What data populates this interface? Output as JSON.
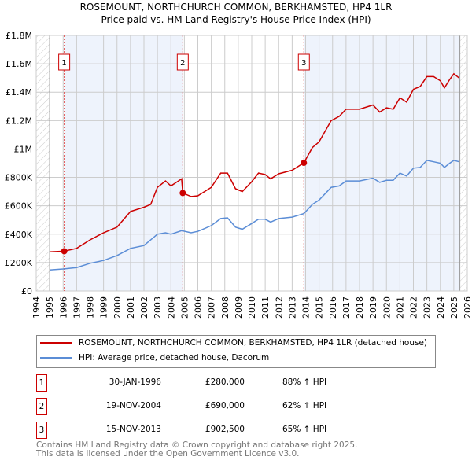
{
  "chart_data": {
    "type": "line",
    "title": "ROSEMOUNT, NORTHCHURCH COMMON, BERKHAMSTED, HP4 1LR",
    "subtitle": "Price paid vs. HM Land Registry's House Price Index (HPI)",
    "xlim": [
      1994,
      2026
    ],
    "ylim": [
      0,
      1800000
    ],
    "x_ticks": [
      "1994",
      "1995",
      "1996",
      "1997",
      "1998",
      "1999",
      "2000",
      "2001",
      "2002",
      "2003",
      "2004",
      "2005",
      "2006",
      "2007",
      "2008",
      "2009",
      "2010",
      "2011",
      "2012",
      "2013",
      "2014",
      "2015",
      "2016",
      "2017",
      "2018",
      "2019",
      "2020",
      "2021",
      "2022",
      "2023",
      "2024",
      "2025",
      "2026"
    ],
    "y_ticks": [
      {
        "v": 0,
        "label": "£0"
      },
      {
        "v": 200000,
        "label": "£200K"
      },
      {
        "v": 400000,
        "label": "£400K"
      },
      {
        "v": 600000,
        "label": "£600K"
      },
      {
        "v": 800000,
        "label": "£800K"
      },
      {
        "v": 1000000,
        "label": "£1M"
      },
      {
        "v": 1200000,
        "label": "£1.2M"
      },
      {
        "v": 1400000,
        "label": "£1.4M"
      },
      {
        "v": 1600000,
        "label": "£1.6M"
      },
      {
        "v": 1800000,
        "label": "£1.8M"
      }
    ],
    "grid": true,
    "series": [
      {
        "name": "ROSEMOUNT, NORTHCHURCH COMMON, BERKHAMSTED, HP4 1LR (detached house)",
        "color": "#cc0000",
        "x": [
          1995,
          1996.08,
          1997,
          1998,
          1999,
          2000,
          2001,
          2002,
          2002.5,
          2003,
          2003.6,
          2004,
          2004.8,
          2004.88,
          2005.5,
          2006,
          2007,
          2007.7,
          2008.2,
          2008.8,
          2009.3,
          2010,
          2010.5,
          2011,
          2011.4,
          2012,
          2013,
          2013.87,
          2014.5,
          2015,
          2015.9,
          2016.5,
          2017,
          2018,
          2019,
          2019.5,
          2020,
          2020.5,
          2021,
          2021.5,
          2022,
          2022.5,
          2023,
          2023.5,
          2024,
          2024.3,
          2024.7,
          2025,
          2025.4
        ],
        "y": [
          275000,
          280000,
          300000,
          360000,
          410000,
          450000,
          560000,
          590000,
          610000,
          730000,
          775000,
          740000,
          790000,
          690000,
          665000,
          670000,
          730000,
          830000,
          830000,
          720000,
          700000,
          770000,
          830000,
          820000,
          790000,
          825000,
          850000,
          902500,
          1010000,
          1050000,
          1200000,
          1230000,
          1280000,
          1280000,
          1310000,
          1260000,
          1290000,
          1280000,
          1360000,
          1330000,
          1420000,
          1440000,
          1510000,
          1510000,
          1480000,
          1430000,
          1490000,
          1530000,
          1500000
        ]
      },
      {
        "name": "HPI: Average price, detached house, Dacorum",
        "color": "#5b8dd6",
        "x": [
          1995,
          1996,
          1997,
          1998,
          1999,
          2000,
          2001,
          2002,
          2003,
          2003.6,
          2004,
          2004.8,
          2005.5,
          2006,
          2007,
          2007.7,
          2008.2,
          2008.8,
          2009.3,
          2010,
          2010.5,
          2011,
          2011.4,
          2012,
          2013,
          2013.87,
          2014.5,
          2015,
          2015.9,
          2016.5,
          2017,
          2018,
          2019,
          2019.5,
          2020,
          2020.5,
          2021,
          2021.5,
          2022,
          2022.5,
          2023,
          2023.5,
          2024,
          2024.3,
          2024.7,
          2025,
          2025.4
        ],
        "y": [
          148000,
          155000,
          165000,
          195000,
          215000,
          250000,
          300000,
          320000,
          400000,
          410000,
          400000,
          425000,
          410000,
          420000,
          460000,
          510000,
          515000,
          450000,
          435000,
          475000,
          505000,
          505000,
          485000,
          510000,
          520000,
          545000,
          610000,
          640000,
          730000,
          740000,
          775000,
          775000,
          795000,
          765000,
          780000,
          780000,
          830000,
          810000,
          865000,
          870000,
          920000,
          910000,
          900000,
          870000,
          900000,
          920000,
          910000
        ]
      }
    ],
    "sales": [
      {
        "num": "1",
        "x": 1996.08,
        "y": 280000,
        "date": "30-JAN-1996",
        "price": "£280,000",
        "hpi": "88% ↑ HPI"
      },
      {
        "num": "2",
        "x": 2004.88,
        "y": 690000,
        "date": "19-NOV-2004",
        "price": "£690,000",
        "hpi": "62% ↑ HPI"
      },
      {
        "num": "3",
        "x": 2013.87,
        "y": 902500,
        "date": "15-NOV-2013",
        "price": "£902,500",
        "hpi": "65% ↑ HPI"
      }
    ],
    "legend_placement": "below"
  },
  "footer": [
    "Contains HM Land Registry data © Crown copyright and database right 2025.",
    "This data is licensed under the Open Government Licence v3.0."
  ]
}
